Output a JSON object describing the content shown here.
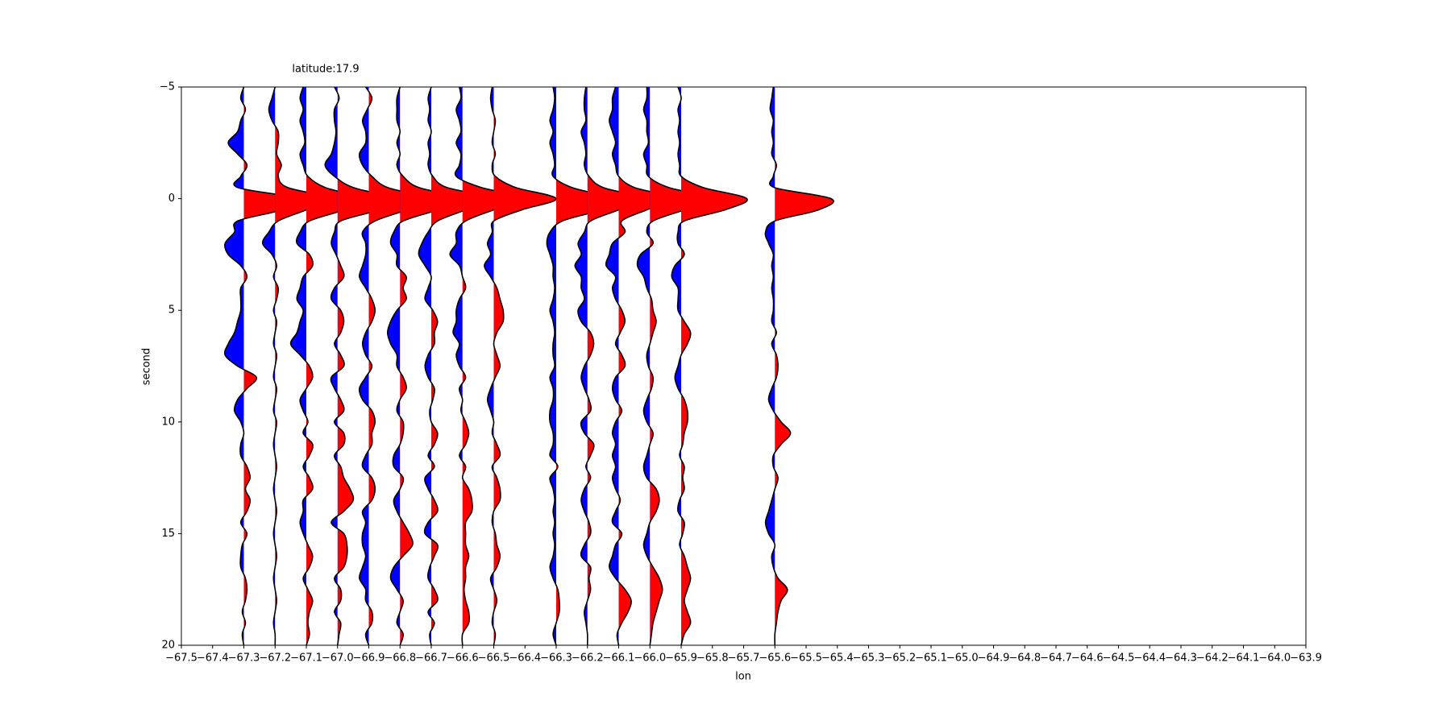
{
  "chart_data": {
    "type": "wiggle",
    "title": "latitude:17.9",
    "xlabel": "lon",
    "ylabel": "second",
    "pos_color": "#ff0000",
    "neg_color": "#0000ff",
    "line_color": "#000000",
    "xlim": [
      -67.5,
      -63.9
    ],
    "ylim": [
      20,
      -5
    ],
    "xticks": [
      {
        "value": -67.5,
        "label": "−67.5"
      },
      {
        "value": -67.4,
        "label": "−67.4"
      },
      {
        "value": -67.3,
        "label": "−67.3"
      },
      {
        "value": -67.2,
        "label": "−67.2"
      },
      {
        "value": -67.1,
        "label": "−67.1"
      },
      {
        "value": -67.0,
        "label": "−67.0"
      },
      {
        "value": -66.9,
        "label": "−66.9"
      },
      {
        "value": -66.8,
        "label": "−66.8"
      },
      {
        "value": -66.7,
        "label": "−66.7"
      },
      {
        "value": -66.6,
        "label": "−66.6"
      },
      {
        "value": -66.5,
        "label": "−66.5"
      },
      {
        "value": -66.4,
        "label": "−66.4"
      },
      {
        "value": -66.3,
        "label": "−66.3"
      },
      {
        "value": -66.2,
        "label": "−66.2"
      },
      {
        "value": -66.1,
        "label": "−66.1"
      },
      {
        "value": -66.0,
        "label": "−66.0"
      },
      {
        "value": -65.9,
        "label": "−65.9"
      },
      {
        "value": -65.8,
        "label": "−65.8"
      },
      {
        "value": -65.7,
        "label": "−65.7"
      },
      {
        "value": -65.6,
        "label": "−65.6"
      },
      {
        "value": -65.5,
        "label": "−65.5"
      },
      {
        "value": -65.4,
        "label": "−65.4"
      },
      {
        "value": -65.3,
        "label": "−65.3"
      },
      {
        "value": -65.2,
        "label": "−65.2"
      },
      {
        "value": -65.1,
        "label": "−65.1"
      },
      {
        "value": -65.0,
        "label": "−65.0"
      },
      {
        "value": -64.9,
        "label": "−64.9"
      },
      {
        "value": -64.8,
        "label": "−64.8"
      },
      {
        "value": -64.7,
        "label": "−64.7"
      },
      {
        "value": -64.6,
        "label": "−64.6"
      },
      {
        "value": -64.5,
        "label": "−64.5"
      },
      {
        "value": -64.4,
        "label": "−64.4"
      },
      {
        "value": -64.3,
        "label": "−64.3"
      },
      {
        "value": -64.2,
        "label": "−64.2"
      },
      {
        "value": -64.1,
        "label": "−64.1"
      },
      {
        "value": -64.0,
        "label": "−64.0"
      },
      {
        "value": -63.9,
        "label": "−63.9"
      }
    ],
    "yticks": [
      {
        "value": -5,
        "label": "−5"
      },
      0,
      5,
      10,
      15,
      20
    ],
    "time": [
      -5,
      -4.5,
      -4,
      -3.5,
      -3,
      -2.5,
      -2,
      -1.5,
      -1,
      -0.5,
      0,
      0.5,
      1,
      1.5,
      2,
      2.5,
      3,
      3.5,
      4,
      4.5,
      5,
      5.5,
      6,
      6.5,
      7,
      7.5,
      8,
      8.5,
      9,
      9.5,
      10,
      10.5,
      11,
      11.5,
      12,
      12.5,
      13,
      13.5,
      14,
      14.5,
      15,
      15.5,
      16,
      16.5,
      17,
      17.5,
      18,
      18.5,
      19,
      19.5,
      20
    ],
    "traces": [
      {
        "lon": -67.3,
        "values": [
          0,
          -0.01,
          0.005,
          -0.01,
          -0.02,
          -0.05,
          -0.02,
          0.01,
          -0.01,
          -0.02,
          0.17,
          0.12,
          -0.02,
          -0.03,
          -0.06,
          -0.05,
          -0.01,
          0.01,
          -0.01,
          -0.01,
          -0.01,
          -0.02,
          -0.03,
          -0.05,
          -0.06,
          -0.02,
          0.04,
          0.01,
          -0.02,
          -0.03,
          -0.01,
          0.0,
          -0.01,
          -0.01,
          0.01,
          0.02,
          0.005,
          0.02,
          0.01,
          -0.01,
          0.01,
          -0.005,
          -0.01,
          -0.01,
          0.005,
          0.01,
          0.005,
          -0.005,
          0.005,
          -0.005,
          0
        ]
      },
      {
        "lon": -67.2,
        "values": [
          0,
          -0.01,
          -0.02,
          -0.01,
          0.01,
          0.01,
          0.005,
          0.02,
          0.01,
          0.04,
          0.18,
          0.1,
          0.01,
          -0.02,
          -0.04,
          -0.01,
          0.005,
          -0.005,
          0.01,
          0.005,
          -0.005,
          0.005,
          0,
          -0.005,
          0.005,
          0,
          -0.005,
          0.005,
          0,
          -0.005,
          0.005,
          0,
          -0.005,
          0,
          0.005,
          0,
          -0.005,
          0,
          0.005,
          0,
          -0.005,
          0,
          0.005,
          0,
          -0.005,
          0,
          0.005,
          0,
          -0.005,
          0,
          0
        ]
      },
      {
        "lon": -67.1,
        "values": [
          -0.01,
          -0.02,
          -0.01,
          -0.02,
          -0.01,
          -0.005,
          -0.02,
          -0.01,
          0.005,
          0.06,
          0.18,
          0.12,
          0.01,
          -0.02,
          -0.03,
          0.01,
          0.02,
          -0.01,
          -0.02,
          -0.03,
          -0.01,
          -0.02,
          -0.03,
          -0.05,
          -0.02,
          0.01,
          0.02,
          0.0,
          -0.02,
          -0.01,
          0.005,
          -0.01,
          0.02,
          0.01,
          -0.01,
          0.01,
          0.02,
          -0.01,
          -0.01,
          -0.02,
          -0.01,
          0.005,
          0.02,
          0.01,
          -0.01,
          0.005,
          0.02,
          0.01,
          0.005,
          0.01,
          0
        ]
      },
      {
        "lon": -67.0,
        "values": [
          -0.01,
          0.005,
          -0.01,
          -0.01,
          -0.005,
          -0.01,
          -0.02,
          -0.04,
          -0.01,
          0.05,
          0.18,
          0.13,
          0.01,
          -0.01,
          -0.02,
          -0.005,
          0.01,
          0.02,
          -0.01,
          -0.02,
          0.01,
          0.02,
          0.01,
          -0.01,
          0.01,
          0.02,
          -0.02,
          -0.01,
          0.01,
          0.02,
          -0.01,
          0.02,
          0.02,
          -0.01,
          0.01,
          0.02,
          0.04,
          0.05,
          0.02,
          -0.02,
          0.02,
          0.03,
          0.03,
          0.02,
          -0.01,
          0.01,
          0.01,
          -0.01,
          0.01,
          0.005,
          0
        ]
      },
      {
        "lon": -66.9,
        "values": [
          -0.01,
          0.01,
          -0.005,
          -0.02,
          -0.01,
          -0.01,
          -0.03,
          -0.02,
          0.01,
          0.06,
          0.19,
          0.12,
          0.02,
          -0.02,
          -0.01,
          -0.01,
          -0.02,
          -0.03,
          -0.01,
          0.01,
          0.02,
          0.01,
          -0.01,
          -0.02,
          -0.01,
          0.01,
          -0.01,
          -0.03,
          -0.02,
          0.01,
          0.02,
          0.01,
          0.01,
          -0.01,
          -0.02,
          0.01,
          0.02,
          0.01,
          -0.02,
          -0.01,
          -0.02,
          -0.02,
          -0.01,
          -0.02,
          -0.03,
          -0.01,
          -0.01,
          0.01,
          0.01,
          -0.01,
          0
        ]
      },
      {
        "lon": -66.8,
        "values": [
          0,
          -0.01,
          -0.01,
          -0.01,
          0.0,
          -0.01,
          0.0,
          -0.01,
          0.01,
          0.06,
          0.2,
          0.12,
          0.01,
          -0.02,
          -0.03,
          -0.01,
          -0.01,
          0.02,
          0.01,
          0.02,
          -0.01,
          -0.03,
          -0.04,
          -0.03,
          -0.01,
          -0.01,
          0.01,
          0.02,
          0.0,
          -0.01,
          0.01,
          0.01,
          0.0,
          -0.02,
          -0.02,
          0.01,
          0.0,
          -0.02,
          -0.01,
          0.01,
          0.03,
          0.04,
          0.01,
          -0.02,
          -0.03,
          -0.01,
          0.01,
          0.0,
          -0.01,
          0.01,
          0
        ]
      },
      {
        "lon": -66.7,
        "values": [
          0.0,
          -0.01,
          -0.005,
          -0.01,
          0.0,
          -0.01,
          -0.005,
          -0.01,
          0.005,
          0.05,
          0.2,
          0.11,
          0.02,
          -0.01,
          -0.03,
          -0.04,
          -0.02,
          0.0,
          -0.01,
          -0.02,
          0.005,
          0.02,
          0.01,
          0.01,
          -0.01,
          -0.02,
          -0.01,
          0.01,
          0.005,
          -0.005,
          0.0,
          0.02,
          0.01,
          -0.01,
          0.01,
          -0.02,
          -0.01,
          0.01,
          0.02,
          -0.01,
          -0.02,
          0.02,
          0.01,
          -0.005,
          -0.01,
          0.01,
          0.02,
          -0.01,
          0.01,
          -0.005,
          0
        ]
      },
      {
        "lon": -66.6,
        "values": [
          -0.01,
          -0.005,
          -0.02,
          -0.01,
          -0.005,
          -0.02,
          -0.005,
          -0.01,
          -0.02,
          0.06,
          0.2,
          0.1,
          0.01,
          -0.02,
          -0.02,
          -0.04,
          -0.01,
          0.0,
          0.01,
          -0.01,
          -0.02,
          -0.02,
          -0.03,
          -0.01,
          -0.02,
          -0.01,
          0.01,
          -0.01,
          0.0,
          -0.005,
          0.01,
          0.02,
          0.01,
          -0.01,
          0.01,
          0.0,
          0.02,
          0.03,
          0.03,
          0.01,
          0.01,
          0.01,
          0.02,
          0.01,
          0.01,
          0.005,
          0.01,
          0.02,
          0.02,
          0.0,
          0
        ]
      },
      {
        "lon": -66.5,
        "values": [
          -0.005,
          -0.01,
          -0.005,
          0.005,
          0.0,
          -0.005,
          0.005,
          -0.005,
          0.005,
          0.07,
          0.2,
          0.09,
          0.0,
          -0.005,
          -0.02,
          -0.01,
          -0.03,
          -0.01,
          0.01,
          0.02,
          0.03,
          0.03,
          0.01,
          0.0,
          0.01,
          0.02,
          0.005,
          -0.01,
          -0.02,
          -0.01,
          0.0,
          -0.005,
          0.01,
          0.02,
          -0.005,
          0.01,
          0.02,
          0.02,
          0.0,
          -0.005,
          0.005,
          0.01,
          0.02,
          0.01,
          -0.01,
          0.0,
          0.01,
          0.0,
          -0.005,
          0.005,
          0
        ]
      },
      {
        "lon": -66.3,
        "values": [
          -0.01,
          -0.005,
          -0.01,
          -0.02,
          -0.01,
          -0.02,
          -0.01,
          -0.005,
          -0.01,
          0.05,
          0.18,
          0.14,
          0.02,
          -0.02,
          -0.03,
          -0.02,
          -0.01,
          -0.01,
          -0.005,
          -0.01,
          -0.02,
          -0.01,
          -0.005,
          -0.01,
          -0.01,
          -0.005,
          -0.02,
          -0.01,
          -0.01,
          -0.02,
          -0.02,
          -0.01,
          -0.01,
          -0.02,
          0.005,
          -0.02,
          -0.01,
          -0.005,
          -0.01,
          -0.005,
          -0.01,
          -0.005,
          -0.01,
          -0.02,
          -0.01,
          0.005,
          0.01,
          0.01,
          0.0,
          -0.01,
          0
        ]
      },
      {
        "lon": -66.2,
        "values": [
          -0.005,
          -0.01,
          -0.01,
          -0.005,
          -0.02,
          -0.01,
          -0.005,
          -0.01,
          0.005,
          0.05,
          0.18,
          0.1,
          0.01,
          -0.01,
          -0.03,
          -0.02,
          -0.04,
          -0.02,
          -0.02,
          -0.01,
          -0.03,
          -0.02,
          0.01,
          0.02,
          0.01,
          -0.01,
          -0.02,
          -0.01,
          0.005,
          0.01,
          -0.02,
          -0.01,
          0.02,
          0.01,
          -0.005,
          0.01,
          -0.01,
          -0.02,
          -0.01,
          0.005,
          0.01,
          -0.01,
          -0.02,
          0.01,
          0.005,
          0.01,
          0.0,
          -0.01,
          -0.005,
          0.0,
          0
        ]
      },
      {
        "lon": -66.1,
        "values": [
          -0.01,
          -0.02,
          -0.02,
          -0.03,
          -0.02,
          -0.01,
          -0.02,
          -0.01,
          0.0,
          0.05,
          0.18,
          0.09,
          0.01,
          0.02,
          -0.02,
          -0.03,
          -0.04,
          -0.01,
          -0.02,
          -0.01,
          0.01,
          0.02,
          0.005,
          -0.01,
          0.01,
          0.02,
          -0.01,
          -0.02,
          -0.01,
          0.01,
          -0.01,
          -0.02,
          -0.01,
          -0.02,
          -0.01,
          -0.02,
          -0.01,
          0.005,
          -0.01,
          -0.02,
          0.01,
          -0.01,
          -0.02,
          -0.03,
          -0.01,
          0.02,
          0.04,
          0.03,
          0.01,
          -0.005,
          0
        ]
      },
      {
        "lon": -66.0,
        "values": [
          -0.01,
          -0.01,
          -0.02,
          -0.01,
          -0.01,
          -0.005,
          -0.02,
          -0.01,
          -0.005,
          0.06,
          0.2,
          0.11,
          0.01,
          -0.01,
          0.01,
          -0.03,
          -0.04,
          -0.02,
          -0.01,
          0.005,
          0.01,
          0.02,
          0.01,
          0.0,
          -0.01,
          -0.005,
          0.01,
          0.005,
          -0.01,
          -0.02,
          -0.01,
          0.01,
          0.0,
          -0.01,
          -0.02,
          -0.01,
          0.02,
          0.03,
          0.02,
          0.0,
          -0.01,
          -0.02,
          -0.01,
          0.01,
          0.03,
          0.04,
          0.03,
          0.02,
          0.01,
          0.005,
          0
        ]
      },
      {
        "lon": -65.9,
        "values": [
          -0.01,
          0.0,
          -0.01,
          -0.005,
          -0.01,
          -0.005,
          -0.01,
          -0.005,
          0.0,
          0.07,
          0.21,
          0.14,
          0.01,
          -0.01,
          -0.01,
          0.01,
          -0.02,
          -0.03,
          -0.01,
          -0.01,
          -0.01,
          0.01,
          0.03,
          0.02,
          0.0,
          -0.01,
          -0.02,
          -0.01,
          0.01,
          0.02,
          0.02,
          0.01,
          0.005,
          -0.005,
          0.01,
          0.005,
          0.01,
          -0.005,
          -0.01,
          0.01,
          0.005,
          -0.005,
          0.01,
          0.02,
          0.03,
          0.02,
          0.01,
          0.02,
          0.03,
          0.01,
          0
        ]
      },
      {
        "lon": -65.6,
        "values": [
          -0.005,
          -0.01,
          -0.015,
          -0.005,
          -0.01,
          -0.005,
          -0.01,
          0.005,
          -0.005,
          -0.002,
          0.18,
          0.14,
          0.0,
          -0.03,
          -0.02,
          -0.005,
          -0.01,
          -0.005,
          -0.01,
          -0.005,
          -0.005,
          -0.01,
          0.005,
          -0.01,
          0.005,
          0.01,
          0.005,
          -0.01,
          -0.02,
          -0.005,
          0.02,
          0.05,
          0.02,
          -0.005,
          -0.005,
          0.01,
          0.0,
          -0.01,
          -0.02,
          -0.03,
          -0.02,
          0.0,
          -0.01,
          -0.005,
          0.01,
          0.04,
          0.02,
          0.01,
          0.005,
          0.0,
          0
        ]
      }
    ]
  }
}
